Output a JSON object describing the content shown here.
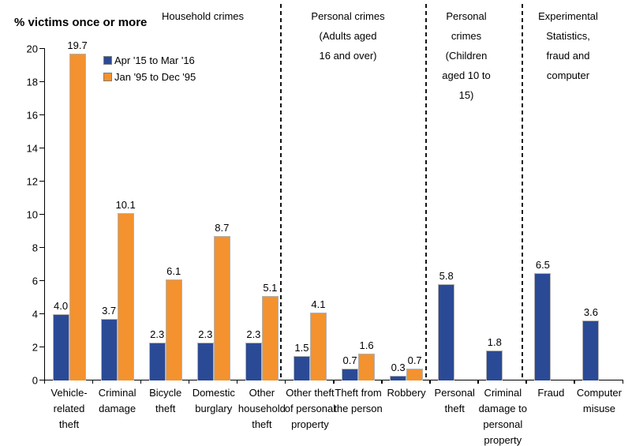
{
  "title": "% victims once or more",
  "legend": {
    "items": [
      {
        "label": "Apr '15 to Mar '16",
        "color": "#2B4A96"
      },
      {
        "label": "Jan '95 to Dec '95",
        "color": "#F3922E"
      }
    ]
  },
  "chart_data": {
    "type": "bar",
    "title": "% victims once or more",
    "ylabel": "% victims once or more",
    "xlabel": "",
    "ylim": [
      0,
      20
    ],
    "yticks": [
      0,
      2,
      4,
      6,
      8,
      10,
      12,
      14,
      16,
      18,
      20
    ],
    "grid": false,
    "legend_position": "upper-left-inside",
    "value_labels_decimals": 1,
    "series": [
      {
        "name": "Apr '15 to Mar '16",
        "color": "#2B4A96",
        "values": [
          4.0,
          3.7,
          2.3,
          2.3,
          2.3,
          1.5,
          0.7,
          0.3,
          5.8,
          1.8,
          6.5,
          3.6
        ]
      },
      {
        "name": "Jan '95 to Dec '95",
        "color": "#F3922E",
        "values": [
          19.7,
          10.1,
          6.1,
          8.7,
          5.1,
          4.1,
          1.6,
          0.7,
          null,
          null,
          null,
          null
        ]
      }
    ],
    "categories": [
      {
        "label": "Vehicle-related theft",
        "lines": [
          "Vehicle-",
          "related",
          "theft"
        ]
      },
      {
        "label": "Criminal damage",
        "lines": [
          "Criminal",
          "damage"
        ]
      },
      {
        "label": "Bicycle theft",
        "lines": [
          "Bicycle",
          "theft"
        ]
      },
      {
        "label": "Domestic burglary",
        "lines": [
          "Domestic",
          "burglary"
        ]
      },
      {
        "label": "Other household theft",
        "lines": [
          "Other",
          "household",
          "theft"
        ]
      },
      {
        "label": "Other theft of personal property",
        "lines": [
          "Other theft",
          "of personal",
          "property"
        ]
      },
      {
        "label": "Theft from the person",
        "lines": [
          "Theft from",
          "the person"
        ]
      },
      {
        "label": "Robbery",
        "lines": [
          "Robbery"
        ]
      },
      {
        "label": "Personal theft",
        "lines": [
          "Personal",
          "theft"
        ]
      },
      {
        "label": "Criminal damage to personal property",
        "lines": [
          "Criminal",
          "damage to",
          "personal",
          "property"
        ]
      },
      {
        "label": "Fraud",
        "lines": [
          "Fraud"
        ]
      },
      {
        "label": "Computer misuse",
        "lines": [
          "Computer",
          "misuse"
        ]
      }
    ],
    "groups": [
      {
        "label": "Household crimes",
        "lines": [
          "Household crimes"
        ],
        "category_range": [
          0,
          4
        ]
      },
      {
        "label": "Personal crimes (Adults aged 16 and over)",
        "lines": [
          "Personal crimes",
          "(Adults aged",
          "16 and over)"
        ],
        "category_range": [
          5,
          7
        ]
      },
      {
        "label": "Personal crimes (Children aged 10 to 15)",
        "lines": [
          "Personal",
          "crimes",
          "(Children",
          "aged 10 to",
          "15)"
        ],
        "category_range": [
          8,
          9
        ]
      },
      {
        "label": "Experimental Statistics, fraud and computer",
        "lines": [
          "Experimental",
          "Statistics,",
          "fraud and",
          "computer"
        ],
        "category_range": [
          10,
          11
        ]
      }
    ],
    "separators_after_category": [
      4,
      7,
      9
    ]
  }
}
